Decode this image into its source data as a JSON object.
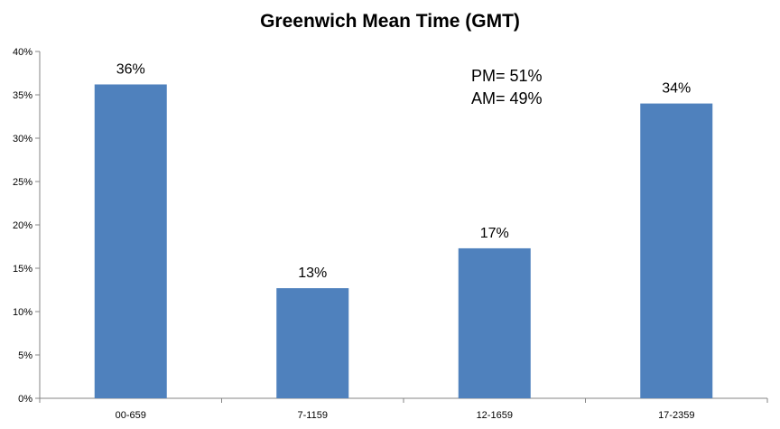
{
  "chart_data": {
    "type": "bar",
    "title": "Greenwich Mean Time (GMT)",
    "categories": [
      "00-659",
      "7-1159",
      "12-1659",
      "17-2359"
    ],
    "values": [
      0.362,
      0.127,
      0.173,
      0.34
    ],
    "data_labels": [
      "36%",
      "13%",
      "17%",
      "34%"
    ],
    "ylim": [
      0,
      0.4
    ],
    "yticks": [
      0,
      0.05,
      0.1,
      0.15,
      0.2,
      0.25,
      0.3,
      0.35,
      0.4
    ],
    "ytick_labels": [
      "0%",
      "5%",
      "10%",
      "15%",
      "20%",
      "25%",
      "30%",
      "35%",
      "40%"
    ],
    "annotations": [
      "PM= 51%",
      "AM= 49%"
    ],
    "bar_color": "#4f81bd",
    "grid": false,
    "legend": "none"
  }
}
